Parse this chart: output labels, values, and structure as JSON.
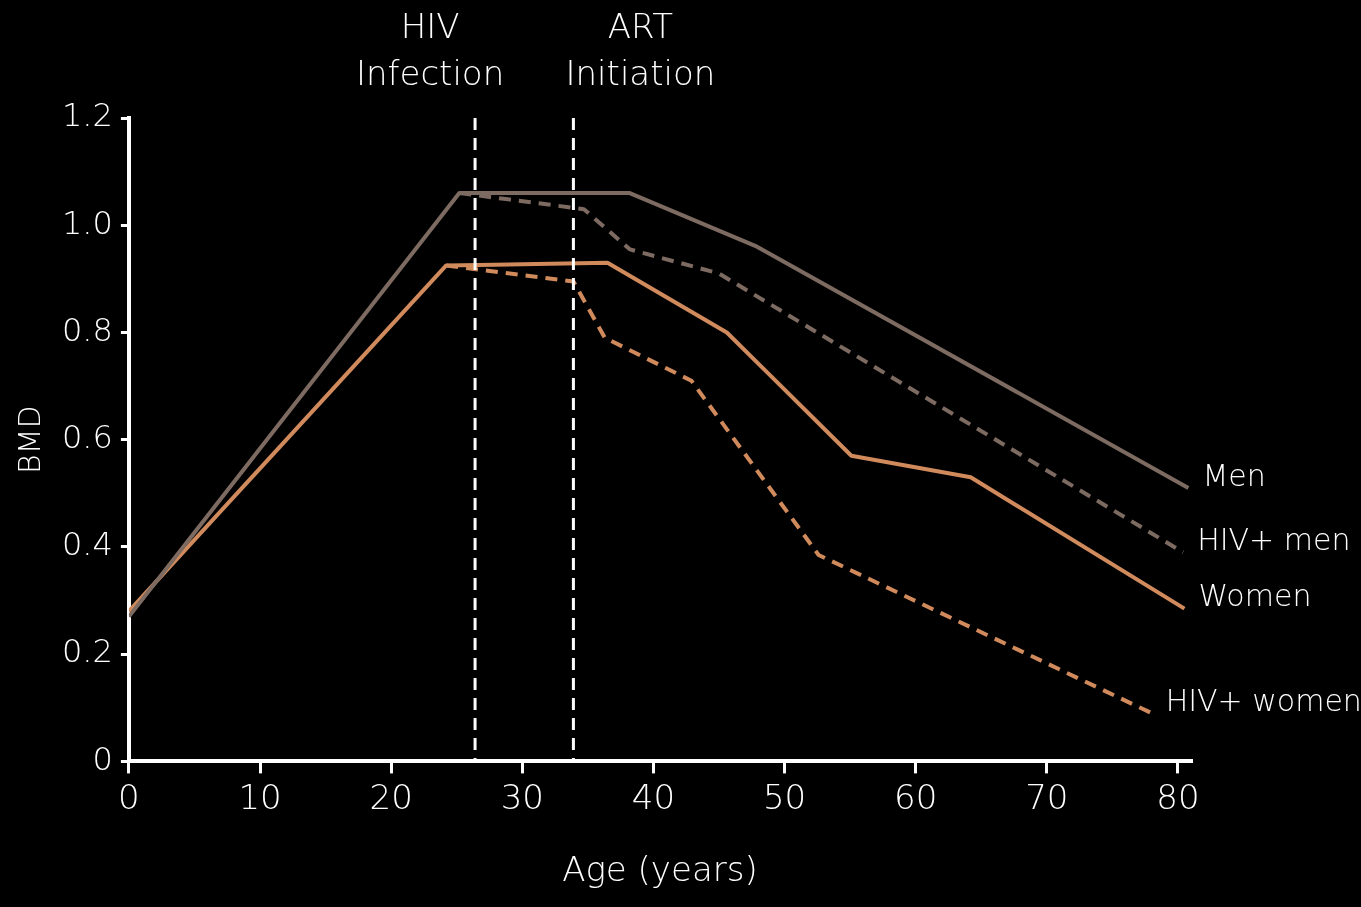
{
  "chart_data": {
    "type": "line",
    "xlabel": "Age (years)",
    "ylabel": "BMD",
    "xlim": [
      0,
      81
    ],
    "ylim": [
      0,
      1.2
    ],
    "xticks": [
      0,
      10,
      20,
      30,
      40,
      50,
      60,
      70,
      80
    ],
    "yticks": [
      0,
      0.2,
      0.4,
      0.6,
      0.8,
      {
        "value": 1,
        "label": "1.0"
      },
      1.2
    ],
    "grid": false,
    "legend": false,
    "marker": "none",
    "series": [
      {
        "name": "Men",
        "color": "#7d6b62",
        "line_style": "solid",
        "x": [
          0,
          25.2,
          38.2,
          47.9,
          80.8
        ],
        "values": [
          0.27,
          1.06,
          1.06,
          0.96,
          0.51
        ]
      },
      {
        "name": "HIV+ men",
        "color": "#7d6b62",
        "line_style": "dashed",
        "x": [
          25.2,
          34.7,
          38.2,
          45,
          80.4
        ],
        "values": [
          1.06,
          1.03,
          0.955,
          0.91,
          0.39
        ]
      },
      {
        "name": "Women",
        "color": "#d08a5c",
        "line_style": "solid",
        "x": [
          0,
          24.2,
          36.5,
          45.6,
          55.1,
          64.2,
          80.5
        ],
        "values": [
          0.28,
          0.925,
          0.93,
          0.8,
          0.57,
          0.53,
          0.285
        ]
      },
      {
        "name": "HIV+ women",
        "color": "#d08a5c",
        "line_style": "dashed",
        "x": [
          24.2,
          33.9,
          36.3,
          42.9,
          52.6,
          78
        ],
        "values": [
          0.925,
          0.895,
          0.79,
          0.71,
          0.385,
          0.09
        ]
      }
    ],
    "ref_lines": [
      {
        "axis": "x",
        "value": 26.4,
        "label": "HIV\nInfection",
        "color": "#ffffff",
        "line_style": "dashed"
      },
      {
        "axis": "x",
        "value": 33.9,
        "label": "ART\nInitiation",
        "color": "#ffffff",
        "line_style": "dashed"
      }
    ]
  }
}
